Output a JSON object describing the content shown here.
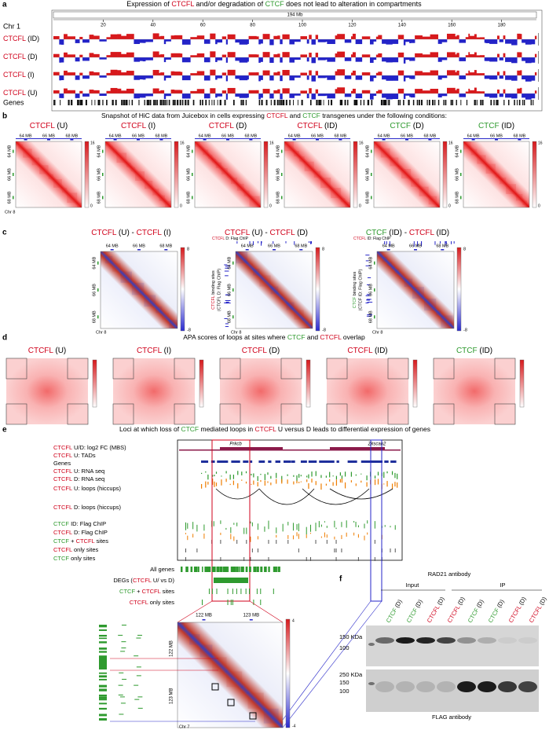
{
  "panel_a": {
    "letter": "a",
    "title": [
      "Expression of ",
      "CTCFL",
      " and/or degradation of ",
      "CTCF",
      " does not lead to alteration in compartments"
    ],
    "chromosome": "Chr 1",
    "length": "194 Mb",
    "ticks": [
      "20",
      "40",
      "60",
      "80",
      "100",
      "120",
      "140",
      "160",
      "180"
    ],
    "tracks": [
      [
        "CTCFL",
        " (ID)"
      ],
      [
        "CTCFL",
        " (D)"
      ],
      [
        "CTCFL",
        " (I)"
      ],
      [
        "CTCFL",
        " (U)"
      ]
    ],
    "genes": "Genes"
  },
  "panel_b": {
    "letter": "b",
    "title": [
      "Snapshot of HiC data from Juicebox in cells expressing ",
      "CTCFL",
      " and ",
      "CTCF",
      " transgenes under the following conditions:"
    ],
    "maps": [
      [
        "CTCFL",
        " (U)"
      ],
      [
        "CTCFL",
        " (I)"
      ],
      [
        "CTCFL",
        " (D)"
      ],
      [
        "CTCFL",
        " (ID)"
      ],
      [
        "CTCF",
        " (D)"
      ],
      [
        "CTCF",
        " (ID)"
      ]
    ],
    "axis_ticks": [
      "64 MB",
      "66 MB",
      "68 MB"
    ],
    "chromosome": "Chr 8",
    "scale_max": "16",
    "scale_min": "0"
  },
  "panel_c": {
    "letter": "c",
    "maps": [
      {
        "label": [
          "CTCFL",
          " (U) - ",
          "CTCFL",
          " (I)"
        ]
      },
      {
        "label": [
          "CTCFL",
          " (U) - ",
          "CTCFL",
          " (D)"
        ],
        "top_track": [
          "CTCFL",
          " D: Flag ChIP"
        ],
        "side_track": [
          [
            "CTCFL",
            " binding sites"
          ],
          "(CTCFL D: Flag ChIP)"
        ]
      },
      {
        "label": [
          "CTCF",
          " (ID) - ",
          "CTCFL",
          " (ID)"
        ],
        "top_track": [
          "CTCFL",
          " ID: Flag ChIP"
        ],
        "side_track": [
          [
            "CTCF",
            " binding sites"
          ],
          "(CTCF ID: Flag ChIP)"
        ]
      }
    ],
    "axis_ticks": [
      "64 MB",
      "66 MB",
      "68 MB"
    ],
    "chromosome": "Chr 8",
    "scale_max": "8",
    "scale_min": "-8"
  },
  "panel_d": {
    "letter": "d",
    "title": [
      "APA scores of loops at sites where ",
      "CTCF",
      " and ",
      "CTCFL",
      " overlap"
    ],
    "maps": [
      [
        "CTCFL",
        " (U)"
      ],
      [
        "CTCFL",
        " (I)"
      ],
      [
        "CTCFL",
        " (D)"
      ],
      [
        "CTCFL",
        " (ID)"
      ],
      [
        "CTCF",
        " (ID)"
      ]
    ]
  },
  "panel_e": {
    "letter": "e",
    "title": [
      "Loci at which loss of ",
      "CTCF",
      " mediated loops in ",
      "CTCFL",
      " U versus D leads to differential expression of genes"
    ],
    "browser_tracks": [
      [
        "CTCFL",
        " U/D: log2 FC (MBS)"
      ],
      [
        "CTCFL",
        " U: TADs"
      ],
      [
        "Genes"
      ],
      [
        "CTCFL",
        " U: RNA seq"
      ],
      [
        "CTCFL",
        " D: RNA seq"
      ],
      [
        "CTCFL",
        " U: loops (hiccups)"
      ],
      [
        "CTCFL",
        " D: loops (hiccups)"
      ],
      [
        "CTCF",
        " ID: Flag ChIP"
      ],
      [
        "CTCFL",
        " D: Flag ChIP"
      ],
      [
        "CTCF",
        " + ",
        "CTCFL",
        " sites"
      ],
      [
        "CTCFL",
        " only sites"
      ],
      [
        "CTCF",
        " only sites"
      ]
    ],
    "gene_names": [
      "Prkcb",
      "Zkscan2"
    ],
    "summary_tracks": [
      [
        "All genes"
      ],
      [
        "DEGs (",
        "CTCFL",
        " U/ vs D)"
      ],
      [
        "CTCF",
        " + ",
        "CTCFL",
        " sites"
      ],
      [
        "CTCFL",
        " only sites"
      ]
    ],
    "axis_ticks": [
      "122 MB",
      "123 MB"
    ],
    "chromosome": "Chr 7",
    "scale_max": "4",
    "scale_min": "-4"
  },
  "panel_f": {
    "letter": "f",
    "title": "RAD21 antibody",
    "groups": [
      "Input",
      "IP"
    ],
    "lanes": [
      [
        "CTCF",
        " (D)"
      ],
      [
        "CTCF",
        " (D)"
      ],
      [
        "CTCFL",
        " (D)"
      ],
      [
        "CTCFL",
        " (D)"
      ],
      [
        "CTCF",
        " (D)"
      ],
      [
        "CTCF",
        " (D)"
      ],
      [
        "CTCFL",
        " (D)"
      ],
      [
        "CTCFL",
        " (D)"
      ]
    ],
    "blot1_markers": [
      "150 KDa",
      "100"
    ],
    "blot2_markers": [
      "250 KDa",
      "150",
      "100"
    ],
    "footer": "FLAG antibody"
  }
}
